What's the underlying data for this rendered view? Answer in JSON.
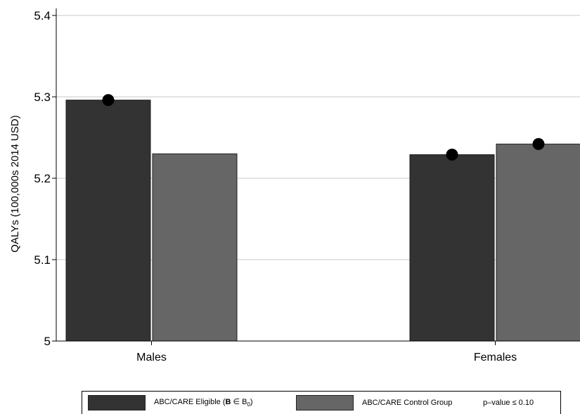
{
  "chart_data": {
    "type": "bar",
    "categories": [
      "Males",
      "Females"
    ],
    "series": [
      {
        "name": "ABC/CARE Eligible (B ∈ B₀)",
        "values": [
          5.296,
          5.229
        ],
        "color": "#333333",
        "significant": [
          true,
          true
        ]
      },
      {
        "name": "ABC/CARE Control Group",
        "values": [
          5.23,
          5.242
        ],
        "color": "#666666",
        "significant": [
          false,
          true
        ]
      }
    ],
    "ylabel": "QALYs (100,000s 2014 USD)",
    "ylim": [
      5,
      5.4
    ],
    "yticks": [
      5,
      5.1,
      5.2,
      5.3,
      5.4
    ],
    "ytick_labels": [
      "5",
      "5.1",
      "5.2",
      "5.3",
      "5.4"
    ],
    "grid": true,
    "legend_position": "bottom",
    "marker_legend": "p–value ≤ 0.10"
  },
  "legend": {
    "eligible_prefix": "ABC/CARE Eligible (",
    "eligible_bold": "B",
    "eligible_mid": " ∈ B",
    "eligible_sub": "0",
    "eligible_suffix": ")",
    "control": "ABC/CARE Control Group",
    "marker": "p–value ≤ 0.10"
  }
}
